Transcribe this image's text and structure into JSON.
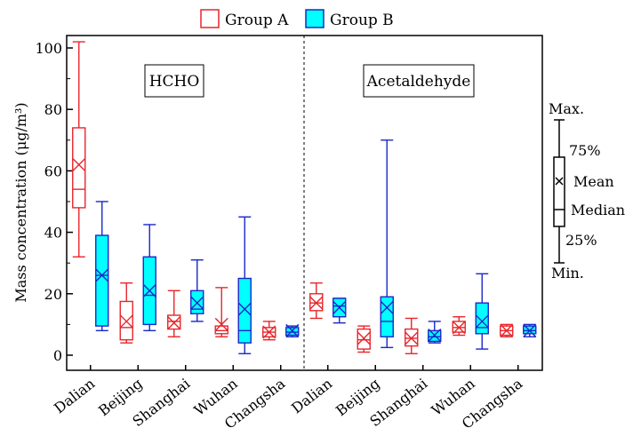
{
  "chart_data": {
    "type": "box",
    "ylabel": "Mass concentration  (μg/m³)",
    "ylim": [
      -5,
      110
    ],
    "yticks": [
      0,
      20,
      40,
      60,
      80,
      100
    ],
    "panels": [
      {
        "label": "HCHO",
        "categories": [
          "Dalian",
          "Beijing",
          "Shanghai",
          "Wuhan",
          "Changsha"
        ]
      },
      {
        "label": "Acetaldehyde",
        "categories": [
          "Dalian",
          "Beijing",
          "Shanghai",
          "Wuhan",
          "Changsha"
        ]
      }
    ],
    "series": [
      {
        "name": "Group A",
        "color": "#e8252b",
        "fill": "#ffffff",
        "boxes": [
          {
            "panel": 0,
            "category": "Dalian",
            "min": 32,
            "q1": 48,
            "median": 54,
            "mean": 62,
            "q3": 74,
            "max": 102
          },
          {
            "panel": 0,
            "category": "Beijing",
            "min": 4,
            "q1": 5,
            "median": 9,
            "mean": 11,
            "q3": 17.5,
            "max": 23.5
          },
          {
            "panel": 0,
            "category": "Shanghai",
            "min": 6,
            "q1": 8.5,
            "median": 11,
            "mean": 10.5,
            "q3": 13,
            "max": 21
          },
          {
            "panel": 0,
            "category": "Wuhan",
            "min": 6,
            "q1": 7,
            "median": 8,
            "mean": 10,
            "q3": 9.5,
            "max": 22
          },
          {
            "panel": 0,
            "category": "Changsha",
            "min": 5,
            "q1": 6,
            "median": 7.5,
            "mean": 7.5,
            "q3": 9,
            "max": 11
          },
          {
            "panel": 1,
            "category": "Dalian",
            "min": 12,
            "q1": 14.5,
            "median": 17,
            "mean": 17,
            "q3": 20,
            "max": 23.5
          },
          {
            "panel": 1,
            "category": "Beijing",
            "min": 1,
            "q1": 2,
            "median": 5,
            "mean": 5.5,
            "q3": 8.5,
            "max": 9.5
          },
          {
            "panel": 1,
            "category": "Shanghai",
            "min": 0.5,
            "q1": 3,
            "median": 5.5,
            "mean": 5.5,
            "q3": 8.5,
            "max": 12
          },
          {
            "panel": 1,
            "category": "Wuhan",
            "min": 6.5,
            "q1": 7.5,
            "median": 9,
            "mean": 9,
            "q3": 11,
            "max": 12.5
          },
          {
            "panel": 1,
            "category": "Changsha",
            "min": 6,
            "q1": 6.5,
            "median": 8,
            "mean": 8,
            "q3": 9.5,
            "max": 10
          }
        ]
      },
      {
        "name": "Group B",
        "color": "#1a27c8",
        "fill": "#00ffff",
        "boxes": [
          {
            "panel": 0,
            "category": "Dalian",
            "min": 8,
            "q1": 9.5,
            "median": 26,
            "mean": 26,
            "q3": 39,
            "max": 50
          },
          {
            "panel": 0,
            "category": "Beijing",
            "min": 8,
            "q1": 10,
            "median": 19.5,
            "mean": 21,
            "q3": 32,
            "max": 42.5
          },
          {
            "panel": 0,
            "category": "Shanghai",
            "min": 11,
            "q1": 13.5,
            "median": 15,
            "mean": 17,
            "q3": 21,
            "max": 31
          },
          {
            "panel": 0,
            "category": "Wuhan",
            "min": 0.5,
            "q1": 4,
            "median": 8,
            "mean": 15,
            "q3": 25,
            "max": 45
          },
          {
            "panel": 0,
            "category": "Changsha",
            "min": 6,
            "q1": 6.5,
            "median": 7.5,
            "mean": 8,
            "q3": 9,
            "max": 9.5
          },
          {
            "panel": 1,
            "category": "Dalian",
            "min": 10.5,
            "q1": 12.5,
            "median": 16,
            "mean": 15.5,
            "q3": 18.5,
            "max": 18.5
          },
          {
            "panel": 1,
            "category": "Beijing",
            "min": 2.5,
            "q1": 6,
            "median": 11,
            "mean": 15.5,
            "q3": 19,
            "max": 70
          },
          {
            "panel": 1,
            "category": "Shanghai",
            "min": 4,
            "q1": 4.5,
            "median": 6,
            "mean": 6.5,
            "q3": 8,
            "max": 11
          },
          {
            "panel": 1,
            "category": "Wuhan",
            "min": 2,
            "q1": 7,
            "median": 9,
            "mean": 11,
            "q3": 17,
            "max": 26.5
          },
          {
            "panel": 1,
            "category": "Changsha",
            "min": 6,
            "q1": 7,
            "median": 8,
            "mean": 8,
            "q3": 9.5,
            "max": 10
          }
        ]
      }
    ],
    "box_legend": [
      "Max.",
      "75%",
      "Mean",
      "Median",
      "25%",
      "Min."
    ]
  }
}
